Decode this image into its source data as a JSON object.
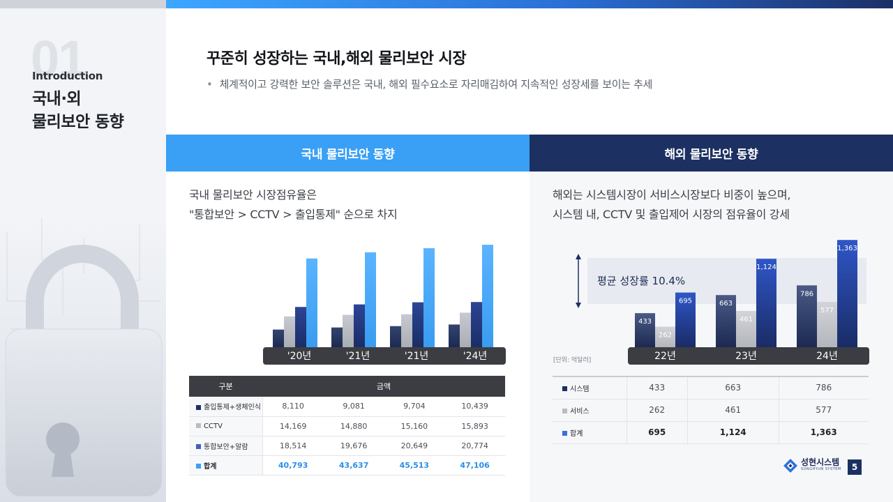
{
  "sidebar": {
    "number": "01",
    "intro": "Introduction",
    "title": "국내·외\n물리보안 동향"
  },
  "header": {
    "title": "꾸준히 성장하는 국내,해외 물리보안 시장",
    "bullet": "•",
    "subtitle": "체계적이고 강력한 보안 솔루션은 국내, 해외 필수요소로 자리매김하여 지속적인 성장세를 보이는 추세"
  },
  "left": {
    "section_title": "국내 물리보안 동향",
    "desc_line1": "국내 물리보안 시장점유율은",
    "desc_line2": "\"통합보안 > CCTV > 출입통제\" 순으로 차지",
    "table": {
      "col_header_1": "구분",
      "col_header_2": "금액",
      "rows": [
        {
          "label": "출입통제+생체인식",
          "swatch": "#1f2f5e",
          "values": [
            "8,110",
            "9,081",
            "9,704",
            "10,439"
          ]
        },
        {
          "label": "CCTV",
          "swatch": "#b9bcc2",
          "values": [
            "14,169",
            "14,880",
            "15,160",
            "15,893"
          ]
        },
        {
          "label": "통합보안+알람",
          "swatch": "#3f5fc4",
          "values": [
            "18,514",
            "19,676",
            "20,649",
            "20,774"
          ]
        },
        {
          "label": "합계",
          "swatch": "#3aa0f5",
          "values": [
            "40,793",
            "43,637",
            "45,513",
            "47,106"
          ]
        }
      ]
    }
  },
  "right": {
    "section_title": "해외 물리보안 동향",
    "desc_line1": "해외는 시스템시장이 서비스시장보다 비중이 높으며,",
    "desc_line2": "시스템 내, CCTV 및 출입제어 시장의 점유율이 강세",
    "unit_note": "[단위: 억달러]",
    "table": {
      "rows": [
        {
          "label": "시스템",
          "swatch": "#1f2f5e",
          "values": [
            "433",
            "663",
            "786"
          ]
        },
        {
          "label": "서비스",
          "swatch": "#b9bcc2",
          "values": [
            "262",
            "461",
            "577"
          ]
        },
        {
          "label": "합계",
          "swatch": "#3a6fe0",
          "values": [
            "695",
            "1,124",
            "1,363"
          ]
        }
      ]
    }
  },
  "chart_data": [
    {
      "type": "bar",
      "categories": [
        "'20년",
        "'21년",
        "'21년",
        "'24년"
      ],
      "series": [
        {
          "name": "출입통제+생체인식",
          "values": [
            8110,
            9081,
            9704,
            10439
          ],
          "color": "#1f2f5e"
        },
        {
          "name": "CCTV",
          "values": [
            14169,
            14880,
            15160,
            15893
          ],
          "color": "#b9bcc2"
        },
        {
          "name": "통합보안+알람",
          "values": [
            18514,
            19676,
            20649,
            20774
          ],
          "color": "#23397a"
        },
        {
          "name": "합계",
          "values": [
            40793,
            43637,
            45513,
            47106
          ],
          "color": "#3aa0f5"
        }
      ],
      "ylim": [
        0,
        50000
      ],
      "grid": false,
      "legend": "none"
    },
    {
      "type": "bar",
      "categories": [
        "22년",
        "23년",
        "24년"
      ],
      "series": [
        {
          "name": "시스템",
          "values": [
            433,
            663,
            786
          ],
          "color": "#1f2f5e"
        },
        {
          "name": "서비스",
          "values": [
            262,
            461,
            577
          ],
          "color": "#b9bcc2"
        },
        {
          "name": "합계",
          "values": [
            695,
            1124,
            1363
          ],
          "color": "#2c4fb8"
        }
      ],
      "data_labels": [
        "433",
        "262",
        "695",
        "663",
        "461",
        "1,124",
        "786",
        "577",
        "1,363"
      ],
      "annotation": "평균 성장률 10.4%",
      "ylim": [
        0,
        1400
      ],
      "grid": false,
      "legend": "none"
    }
  ],
  "footer": {
    "logo_kr": "성현시스템",
    "logo_en": "SUNGHYUN SYSTEM",
    "page": "5"
  }
}
